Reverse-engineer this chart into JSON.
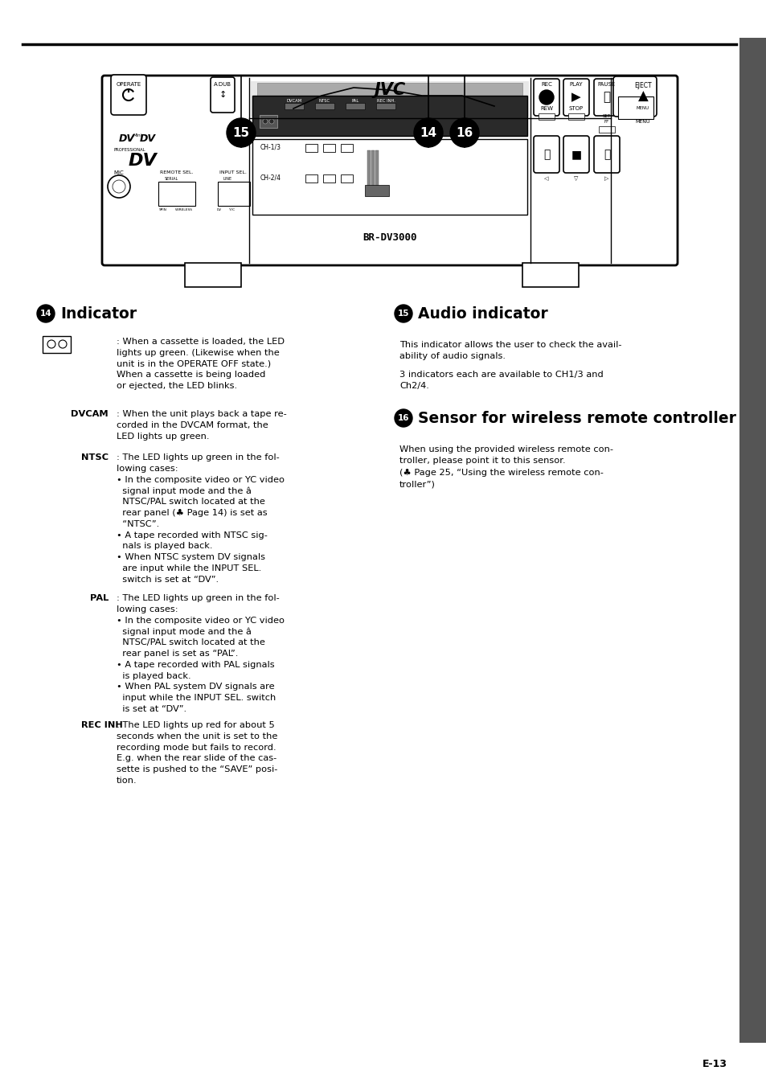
{
  "bg_color": "#ffffff",
  "sidebar_color": "#555555",
  "page_number": "E-13",
  "body_fontsize": 8.2,
  "header_fontsize": 13.5,
  "cassette_entry": [
    ": When a cassette is loaded, the LED",
    "lights up green. (Likewise when the",
    "unit is in the OPERATE OFF state.)",
    "When a cassette is being loaded",
    "or ejected, the LED blinks."
  ],
  "dvcam_entry": [
    ": When the unit plays back a tape re-",
    "corded in the DVCAM format, the",
    "LED lights up green."
  ],
  "ntsc_entry": [
    ": The LED lights up green in the fol-",
    "lowing cases:",
    "• In the composite video or YC video",
    "  signal input mode and the â",
    "  NTSC/PAL switch located at the",
    "  rear panel (♣ Page 14) is set as",
    "  “NTSC”.",
    "• A tape recorded with NTSC sig-",
    "  nals is played back.",
    "• When NTSC system DV signals",
    "  are input while the INPUT SEL.",
    "  switch is set at “DV”."
  ],
  "pal_entry": [
    ": The LED lights up green in the fol-",
    "lowing cases:",
    "• In the composite video or YC video",
    "  signal input mode and the â",
    "  NTSC/PAL switch located at the",
    "  rear panel is set as “PAL”.",
    "• A tape recorded with PAL signals",
    "  is played back.",
    "• When PAL system DV signals are",
    "  input while the INPUT SEL. switch",
    "  is set at “DV”."
  ],
  "recinh_entry": [
    ": The LED lights up red for about 5",
    "seconds when the unit is set to the",
    "recording mode but fails to record.",
    "E.g. when the rear slide of the cas-",
    "sette is pushed to the “SAVE” posi-",
    "tion."
  ],
  "audio_text": [
    "This indicator allows the user to check the avail-",
    "ability of audio signals.",
    "3 indicators each are available to CH1/3 and",
    "Ch2/4."
  ],
  "sensor_text": [
    "When using the provided wireless remote con-",
    "troller, please point it to this sensor.",
    "(♣ Page 25, “Using the wireless remote con-",
    "troller”)"
  ]
}
